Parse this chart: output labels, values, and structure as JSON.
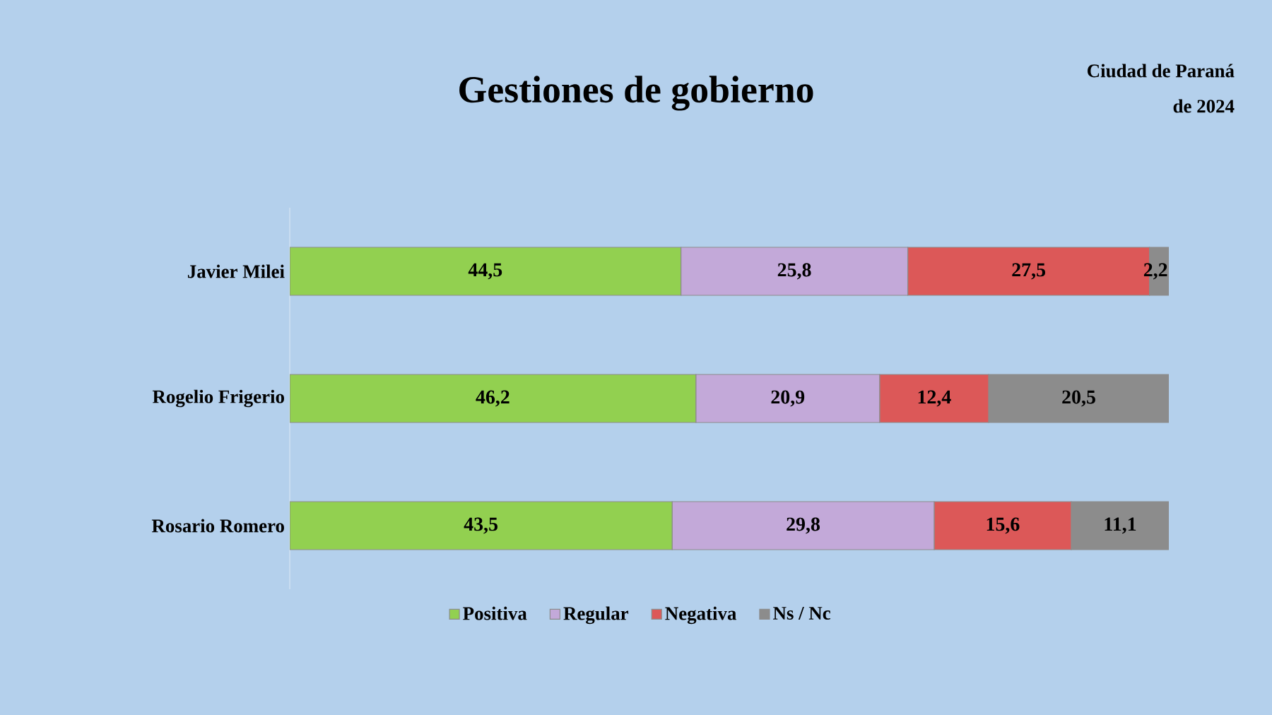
{
  "chart_data": {
    "type": "bar",
    "orientation": "horizontal",
    "stacked": true,
    "title": "Gestiones de gobierno",
    "annotations": [
      "Ciudad de Paraná",
      "de 2024"
    ],
    "categories": [
      "Javier Milei",
      "Rogelio Frigerio",
      "Rosario Romero"
    ],
    "series": [
      {
        "name": "Positiva",
        "color": "#92d050",
        "values": [
          44.5,
          46.2,
          43.5
        ],
        "value_labels": [
          "44,5",
          "46,2",
          "43,5"
        ]
      },
      {
        "name": "Regular",
        "color": "#c3a9d9",
        "values": [
          25.8,
          20.9,
          29.8
        ],
        "value_labels": [
          "25,8",
          "20,9",
          "29,8"
        ]
      },
      {
        "name": "Negativa",
        "color": "#dc5858",
        "values": [
          27.5,
          12.4,
          15.6
        ],
        "value_labels": [
          "27,5",
          "12,4",
          "15,6"
        ]
      },
      {
        "name": "Ns / Nc",
        "color": "#8c8c8c",
        "values": [
          2.2,
          20.5,
          11.1
        ],
        "value_labels": [
          "2,2",
          "20,5",
          "11,1"
        ]
      }
    ],
    "legend": "bottom"
  }
}
